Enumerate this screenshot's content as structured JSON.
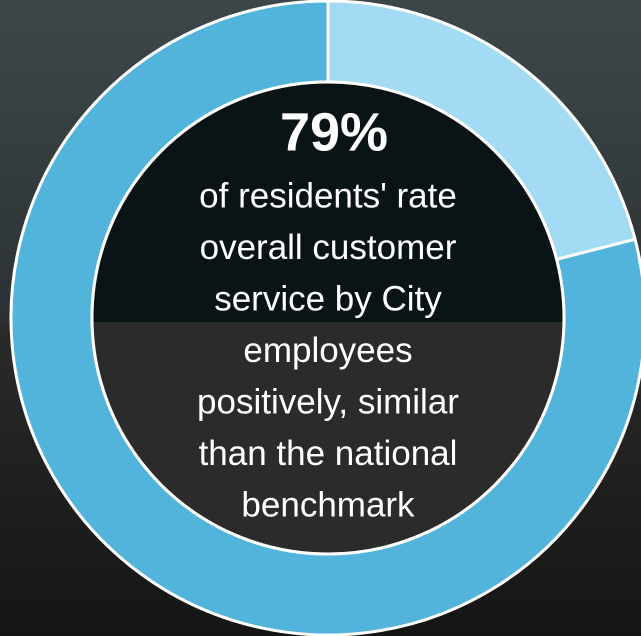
{
  "chart_data": {
    "type": "donut",
    "values": [
      79,
      21
    ],
    "value_labels": [
      "79%",
      null
    ],
    "colors": [
      "#52b4db",
      "#a4dbf4"
    ],
    "description_lines": [
      "of residents' rate",
      "overall customer",
      "service by City",
      "employees",
      "positively, similar",
      "than the national",
      "benchmark"
    ]
  }
}
